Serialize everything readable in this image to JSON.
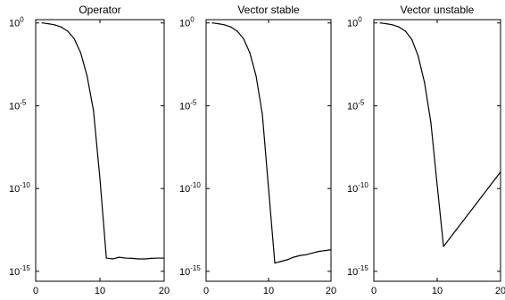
{
  "chart_data": [
    {
      "type": "line",
      "title": "Operator",
      "xlabel": "",
      "ylabel": "",
      "xlim": [
        0,
        20
      ],
      "ylim_log10": [
        -15.6,
        0.2
      ],
      "yscale": "log",
      "grid": false,
      "x_ticks": [
        "0",
        "10",
        "20"
      ],
      "y_tick_exponents": [
        "0",
        "-5",
        "-10",
        "-15"
      ],
      "y_tick_base": "10",
      "x": [
        1,
        2,
        3,
        4,
        5,
        6,
        7,
        8,
        9,
        10,
        11,
        12,
        13,
        14,
        15,
        16,
        17,
        18,
        19,
        20
      ],
      "y_log10": [
        0.0,
        -0.05,
        -0.12,
        -0.25,
        -0.5,
        -0.95,
        -1.8,
        -3.2,
        -5.3,
        -9.4,
        -14.2,
        -14.25,
        -14.15,
        -14.2,
        -14.22,
        -14.25,
        -14.25,
        -14.22,
        -14.2,
        -14.2
      ]
    },
    {
      "type": "line",
      "title": "Vector stable",
      "xlabel": "",
      "ylabel": "",
      "xlim": [
        0,
        20
      ],
      "ylim_log10": [
        -15.6,
        0.2
      ],
      "yscale": "log",
      "grid": false,
      "x_ticks": [
        "0",
        "10",
        "20"
      ],
      "y_tick_exponents": [
        "0",
        "-5",
        "-10",
        "-15"
      ],
      "y_tick_base": "10",
      "x": [
        1,
        2,
        3,
        4,
        5,
        6,
        7,
        8,
        9,
        10,
        11,
        12,
        13,
        14,
        15,
        16,
        17,
        18,
        19,
        20
      ],
      "y_log10": [
        0.0,
        -0.05,
        -0.12,
        -0.25,
        -0.5,
        -0.95,
        -1.8,
        -3.2,
        -5.5,
        -10.0,
        -14.5,
        -14.4,
        -14.3,
        -14.15,
        -14.05,
        -14.0,
        -13.9,
        -13.8,
        -13.75,
        -13.7
      ]
    },
    {
      "type": "line",
      "title": "Vector unstable",
      "xlabel": "",
      "ylabel": "",
      "xlim": [
        0,
        20
      ],
      "ylim_log10": [
        -15.6,
        0.2
      ],
      "yscale": "log",
      "grid": false,
      "x_ticks": [
        "0",
        "10",
        "20"
      ],
      "y_tick_exponents": [
        "0",
        "-5",
        "-10",
        "-15"
      ],
      "y_tick_base": "10",
      "x": [
        1,
        2,
        3,
        4,
        5,
        6,
        7,
        8,
        9,
        10,
        11,
        12,
        13,
        14,
        15,
        16,
        17,
        18,
        19,
        20
      ],
      "y_log10": [
        0.0,
        -0.05,
        -0.12,
        -0.25,
        -0.5,
        -1.0,
        -2.0,
        -3.6,
        -6.0,
        -9.8,
        -13.5,
        -13.0,
        -12.5,
        -12.0,
        -11.5,
        -11.0,
        -10.5,
        -10.0,
        -9.5,
        -9.0
      ]
    }
  ]
}
